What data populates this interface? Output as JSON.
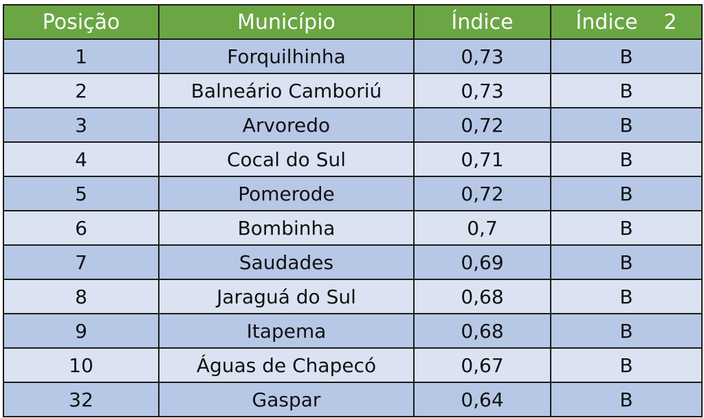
{
  "table": {
    "headers": {
      "posicao": "Posição",
      "municipio": "Município",
      "indice": "Índice",
      "indice2_word": "Índice",
      "indice2_num": "2"
    },
    "rows": [
      {
        "posicao": "1",
        "municipio": "Forquilhinha",
        "indice": "0,73",
        "indice2": "B"
      },
      {
        "posicao": "2",
        "municipio": "Balneário Camboriú",
        "indice": "0,73",
        "indice2": "B"
      },
      {
        "posicao": "3",
        "municipio": "Arvoredo",
        "indice": "0,72",
        "indice2": "B"
      },
      {
        "posicao": "4",
        "municipio": "Cocal do Sul",
        "indice": "0,71",
        "indice2": "B"
      },
      {
        "posicao": "5",
        "municipio": "Pomerode",
        "indice": "0,72",
        "indice2": "B"
      },
      {
        "posicao": "6",
        "municipio": "Bombinha",
        "indice": "0,7",
        "indice2": "B"
      },
      {
        "posicao": "7",
        "municipio": "Saudades",
        "indice": "0,69",
        "indice2": "B"
      },
      {
        "posicao": "8",
        "municipio": "Jaraguá do Sul",
        "indice": "0,68",
        "indice2": "B"
      },
      {
        "posicao": "9",
        "municipio": "Itapema",
        "indice": "0,68",
        "indice2": "B"
      },
      {
        "posicao": "10",
        "municipio": "Águas de Chapecó",
        "indice": "0,67",
        "indice2": "B"
      },
      {
        "posicao": "32",
        "municipio": "Gaspar",
        "indice": "0,64",
        "indice2": "B"
      }
    ]
  },
  "colors": {
    "header_bg": "#6ba644",
    "header_text": "#ffffff",
    "row_dark": "#b7c8e6",
    "row_light": "#dbe3f2",
    "border": "#1a1a1a"
  }
}
